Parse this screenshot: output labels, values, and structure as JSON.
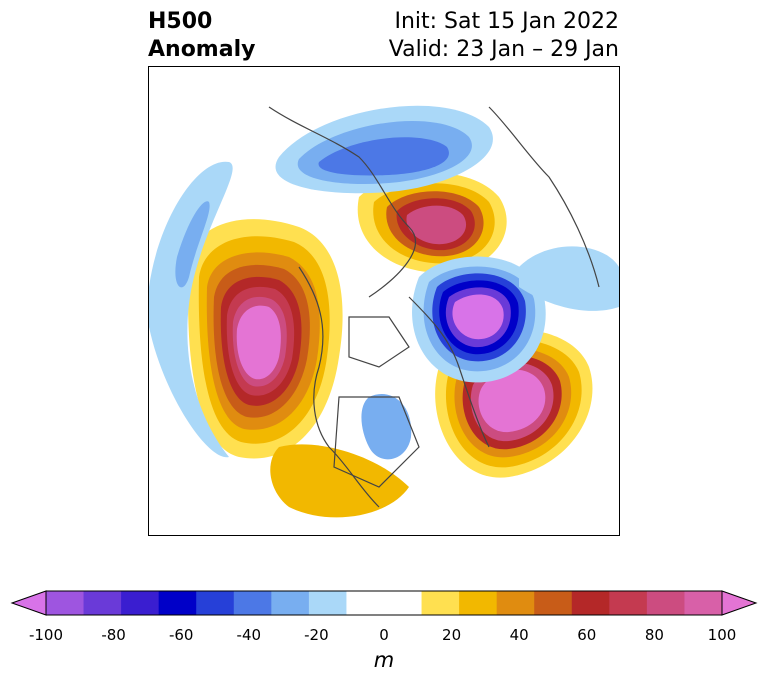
{
  "title": {
    "left_line1": "H500",
    "left_line2": "Anomaly",
    "right_line1": "Init: Sat 15 Jan 2022",
    "right_line2": "Valid: 23 Jan – 29 Jan"
  },
  "colorbar": {
    "unit": "m",
    "ticks": [
      "-100",
      "-80",
      "-60",
      "-40",
      "-20",
      "0",
      "20",
      "40",
      "60",
      "80",
      "100"
    ],
    "colors": [
      "#d873e8",
      "#9e55e0",
      "#6a3ad8",
      "#3a1ed0",
      "#0000c8",
      "#2640d8",
      "#4c78e6",
      "#78aef0",
      "#aad8f8",
      "#ffffff",
      "#ffffff",
      "#ffe050",
      "#f2b800",
      "#e08c10",
      "#c85c18",
      "#b42828",
      "#c43a50",
      "#cc4c80",
      "#d860a8",
      "#e474d4"
    ]
  },
  "map": {
    "projection": "north-polar-stereographic",
    "field": "500 hPa geopotential height anomaly"
  }
}
